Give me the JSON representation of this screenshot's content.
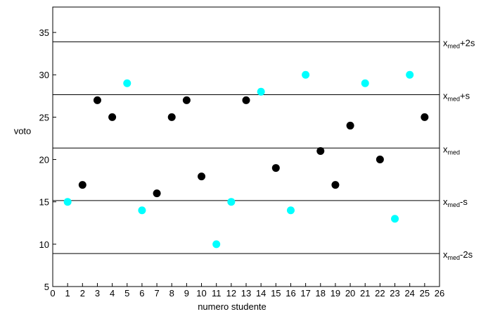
{
  "chart_data": {
    "type": "scatter",
    "xlabel": "numero studente",
    "ylabel": "voto",
    "xlim": [
      0,
      26
    ],
    "ylim": [
      5,
      38
    ],
    "xticks": [
      0,
      1,
      2,
      3,
      4,
      5,
      6,
      7,
      8,
      9,
      10,
      11,
      12,
      13,
      14,
      15,
      16,
      17,
      18,
      19,
      20,
      21,
      22,
      23,
      24,
      25,
      26
    ],
    "yticks": [
      5,
      10,
      15,
      20,
      25,
      30,
      35
    ],
    "grid": false,
    "series": [
      {
        "color": "#000000",
        "points": [
          {
            "x": 2,
            "y": 17
          },
          {
            "x": 3,
            "y": 27
          },
          {
            "x": 4,
            "y": 25
          },
          {
            "x": 7,
            "y": 16
          },
          {
            "x": 8,
            "y": 25
          },
          {
            "x": 9,
            "y": 27
          },
          {
            "x": 10,
            "y": 18
          },
          {
            "x": 13,
            "y": 27
          },
          {
            "x": 15,
            "y": 19
          },
          {
            "x": 18,
            "y": 21
          },
          {
            "x": 19,
            "y": 17
          },
          {
            "x": 20,
            "y": 24
          },
          {
            "x": 22,
            "y": 20
          },
          {
            "x": 25,
            "y": 25
          }
        ]
      },
      {
        "color": "#00FFFF",
        "points": [
          {
            "x": 1,
            "y": 15
          },
          {
            "x": 5,
            "y": 29
          },
          {
            "x": 6,
            "y": 14
          },
          {
            "x": 11,
            "y": 10
          },
          {
            "x": 12,
            "y": 15
          },
          {
            "x": 14,
            "y": 28
          },
          {
            "x": 16,
            "y": 14
          },
          {
            "x": 17,
            "y": 30
          },
          {
            "x": 21,
            "y": 29
          },
          {
            "x": 23,
            "y": 13
          },
          {
            "x": 24,
            "y": 30
          }
        ]
      }
    ],
    "reference_lines": [
      {
        "y": 33.9,
        "base": "x",
        "sub": "med",
        "suffix": "+2s"
      },
      {
        "y": 27.65,
        "base": "x",
        "sub": "med",
        "suffix": "+s"
      },
      {
        "y": 21.35,
        "base": "x",
        "sub": "med",
        "suffix": ""
      },
      {
        "y": 15.15,
        "base": "x",
        "sub": "med",
        "suffix": "-s"
      },
      {
        "y": 8.9,
        "base": "x",
        "sub": "med",
        "suffix": "-2s"
      }
    ]
  }
}
